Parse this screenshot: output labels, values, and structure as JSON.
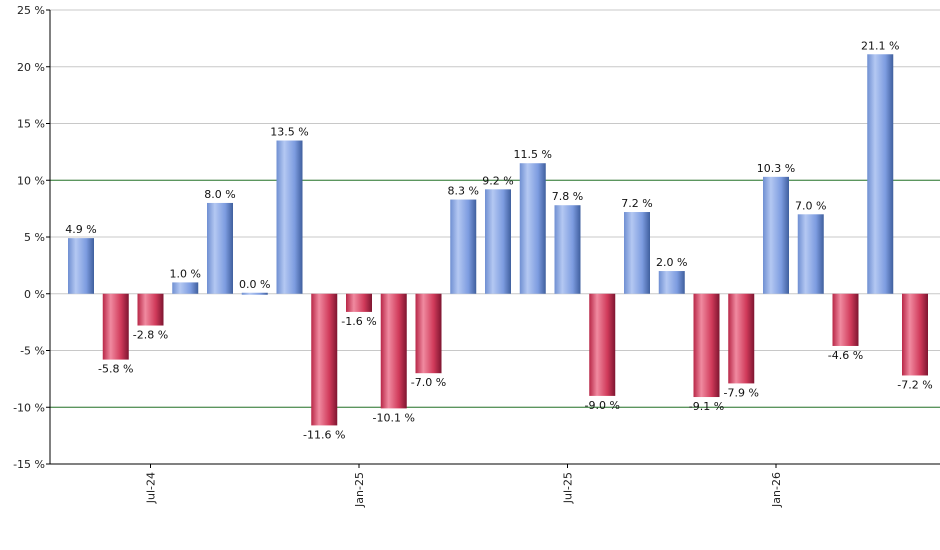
{
  "chart_data": {
    "type": "bar",
    "title": "",
    "xlabel": "",
    "ylabel": "",
    "ylim": [
      -15,
      25
    ],
    "yticks": [
      25,
      20,
      15,
      10,
      5,
      0,
      -5,
      -10,
      -15
    ],
    "ytick_labels": [
      "25 %",
      "20 %",
      "15 %",
      "10 %",
      "5 %",
      "0 %",
      "-5 %",
      "-10 %",
      "-15 %"
    ],
    "reference_lines": [
      10,
      -10
    ],
    "values": [
      4.9,
      -5.8,
      -2.8,
      1.0,
      8.0,
      0.0,
      13.5,
      -11.6,
      -1.6,
      -10.1,
      -7.0,
      8.3,
      9.2,
      11.5,
      7.8,
      -9.0,
      7.2,
      2.0,
      -9.1,
      -7.9,
      10.3,
      7.0,
      -4.6,
      21.1,
      -7.2
    ],
    "labels": [
      "4.9 %",
      "-5.8 %",
      "-2.8 %",
      "1.0 %",
      "8.0 %",
      "0.0 %",
      "13.5 %",
      "-11.6 %",
      "-1.6 %",
      "-10.1 %",
      "-7.0 %",
      "8.3 %",
      "9.2 %",
      "11.5 %",
      "7.8 %",
      "-9.0 %",
      "7.2 %",
      "2.0 %",
      "-9.1 %",
      "-7.9 %",
      "10.3 %",
      "7.0 %",
      "-4.6 %",
      "21.1 %",
      "-7.2 %"
    ],
    "xtick_labels": [
      {
        "index": 2,
        "label": "Jul-24"
      },
      {
        "index": 8,
        "label": "Jan-25"
      },
      {
        "index": 14,
        "label": "Jul-25"
      },
      {
        "index": 20,
        "label": "Jan-26"
      }
    ],
    "grid": true,
    "colors": {
      "positive": "#7f9fdc",
      "negative": "#c8324f",
      "reference": "#2e7d32",
      "grid": "#c8c8c8",
      "axis": "#000000"
    }
  }
}
